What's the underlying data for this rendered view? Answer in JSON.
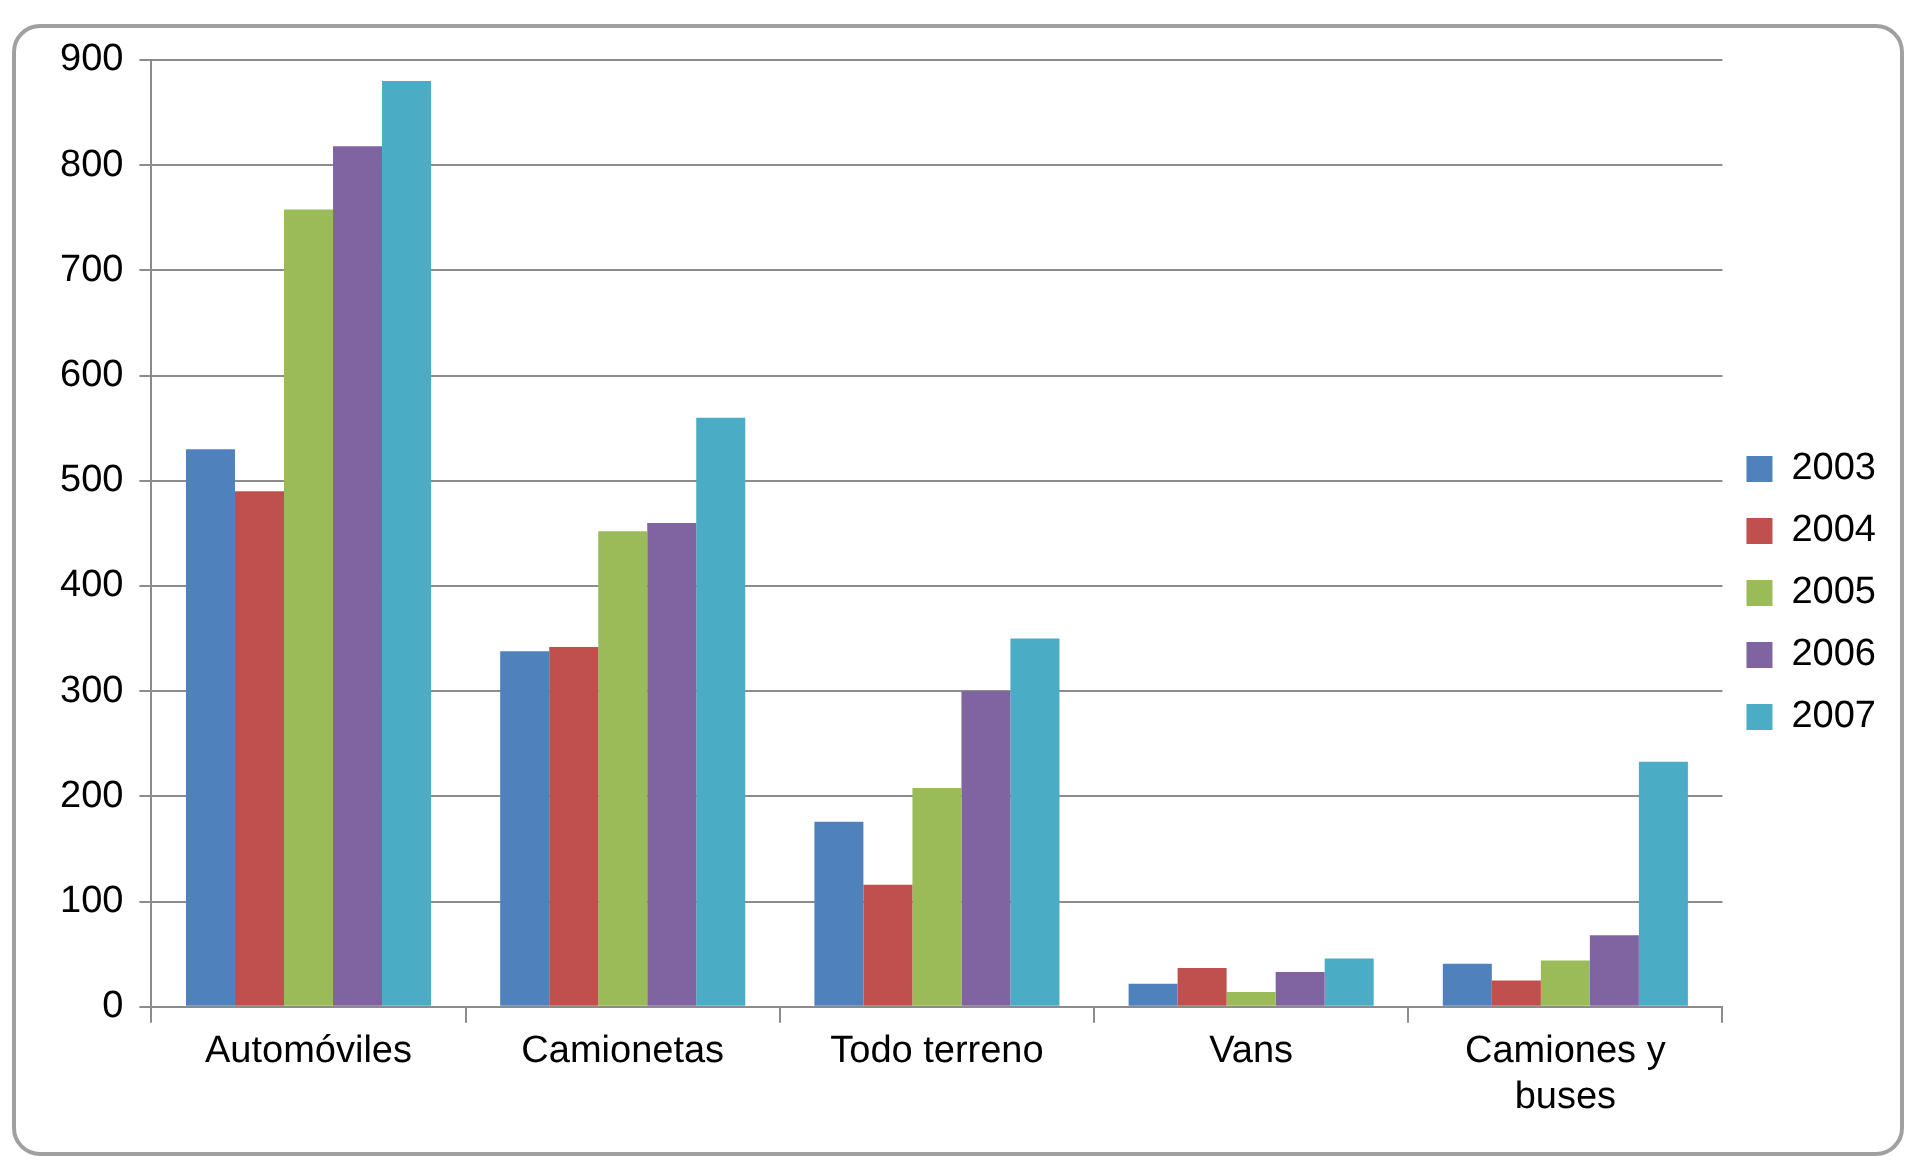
{
  "chart_data": {
    "type": "bar",
    "categories": [
      "Automóviles",
      "Camionetas",
      "Todo terreno",
      "Vans",
      "Camiones y buses"
    ],
    "series": [
      {
        "name": "2003",
        "color": "#4f81bd",
        "values": [
          530,
          338,
          176,
          22,
          41
        ]
      },
      {
        "name": "2004",
        "color": "#c0504d",
        "values": [
          490,
          342,
          116,
          37,
          25
        ]
      },
      {
        "name": "2005",
        "color": "#9bbb59",
        "values": [
          758,
          452,
          208,
          14,
          44
        ]
      },
      {
        "name": "2006",
        "color": "#8064a2",
        "values": [
          818,
          460,
          300,
          33,
          68
        ]
      },
      {
        "name": "2007",
        "color": "#4bacc6",
        "values": [
          880,
          560,
          350,
          46,
          233
        ]
      }
    ],
    "ylim": [
      0,
      900
    ],
    "yticks": [
      0,
      100,
      200,
      300,
      400,
      500,
      600,
      700,
      800,
      900
    ],
    "grid": "y",
    "legend": "right"
  }
}
